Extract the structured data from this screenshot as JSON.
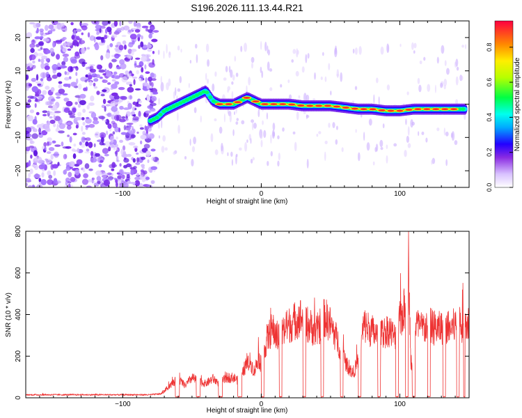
{
  "title": "S196.2026.111.13.44.R21",
  "chart_data": [
    {
      "type": "heatmap",
      "name": "spectrogram",
      "xlabel": "Height of straight line (km)",
      "ylabel": "Frequency (Hz)",
      "xlim": [
        -170,
        150
      ],
      "ylim": [
        -25,
        25
      ],
      "xticks": [
        -100,
        0,
        100
      ],
      "yticks": [
        -20,
        -10,
        0,
        10,
        20
      ],
      "ridge": {
        "description": "dominant frequency track",
        "x": [
          -80,
          -75,
          -70,
          -65,
          -60,
          -55,
          -50,
          -45,
          -40,
          -35,
          -30,
          -20,
          -10,
          0,
          10,
          20,
          30,
          40,
          50,
          60,
          70,
          80,
          90,
          100,
          110,
          120,
          130,
          140,
          148
        ],
        "y": [
          -5,
          -4,
          -2,
          -1,
          0,
          1,
          2,
          3,
          4,
          1,
          0,
          0,
          2,
          0,
          0,
          0,
          -0.5,
          -0.5,
          -0.5,
          -1,
          -1.5,
          -1.5,
          -2,
          -2,
          -1.5,
          -1.5,
          -1.5,
          -1.5,
          -1.5
        ]
      },
      "colorbar": {
        "label": "Normalized spectral amplitude",
        "range": [
          0,
          0.95
        ],
        "ticks": [
          0.0,
          0.2,
          0.4,
          0.6,
          0.8
        ],
        "tick_labels": [
          "0.0",
          "0.2",
          "0.4",
          "0.6",
          "0.8"
        ]
      }
    },
    {
      "type": "line",
      "name": "snr",
      "xlabel": "Height of straight line (km)",
      "ylabel": "SNR (10 * v/v)",
      "xlim": [
        -170,
        150
      ],
      "ylim": [
        0,
        800
      ],
      "xticks": [
        -100,
        0,
        100
      ],
      "yticks": [
        0,
        200,
        400,
        600,
        800
      ],
      "color": "#ee3333",
      "series": [
        {
          "name": "SNR envelope",
          "x": [
            -170,
            -80,
            -72,
            -66,
            -60,
            -55,
            -50,
            -45,
            -40,
            -35,
            -30,
            -25,
            -20,
            -15,
            -12,
            -8,
            -5,
            -2,
            0,
            4,
            8,
            12,
            16,
            20,
            24,
            28,
            34,
            40,
            46,
            50,
            54,
            58,
            62,
            66,
            70,
            74,
            78,
            80,
            84,
            88,
            92,
            96,
            100,
            104,
            106,
            108,
            112,
            116,
            120,
            124,
            128,
            132,
            136,
            140,
            144,
            148
          ],
          "y": [
            15,
            15,
            20,
            60,
            95,
            60,
            100,
            80,
            70,
            95,
            70,
            100,
            100,
            80,
            150,
            180,
            130,
            200,
            160,
            290,
            340,
            300,
            330,
            360,
            380,
            400,
            360,
            330,
            400,
            360,
            300,
            230,
            160,
            120,
            180,
            360,
            340,
            330,
            300,
            320,
            340,
            300,
            380,
            450,
            800,
            120,
            360,
            340,
            360,
            350,
            340,
            360,
            340,
            360,
            360,
            370
          ]
        }
      ],
      "dropouts": [
        [
          -62,
          -59
        ],
        [
          -47,
          -44
        ],
        [
          -31,
          -28
        ],
        [
          -17,
          -14
        ],
        [
          0,
          2
        ],
        [
          13,
          15
        ],
        [
          30,
          32
        ],
        [
          43,
          45
        ],
        [
          57,
          59
        ],
        [
          70,
          72
        ],
        [
          84,
          86
        ],
        [
          97,
          99
        ],
        [
          104,
          106
        ],
        [
          109,
          111
        ],
        [
          120,
          122
        ],
        [
          131,
          133
        ],
        [
          141,
          143
        ],
        [
          146,
          147
        ]
      ]
    }
  ]
}
